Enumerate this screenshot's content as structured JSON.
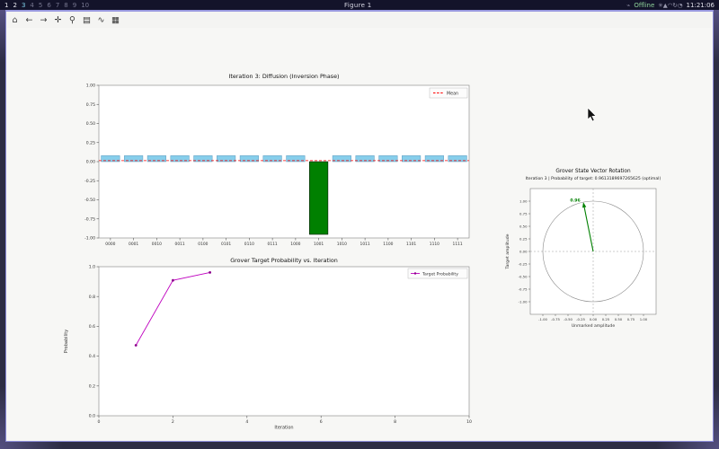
{
  "taskbar": {
    "workspaces": [
      "1",
      "2",
      "3",
      "4",
      "5",
      "6",
      "7",
      "8",
      "9",
      "10"
    ],
    "occupied_workspaces": [
      "1",
      "2"
    ],
    "current_workspace": "3",
    "window_title": "Figure 1",
    "status": {
      "offline": "Offline",
      "time": "11:21:06",
      "icons_before": [
        {
          "name": "network",
          "glyph": "⌁"
        }
      ],
      "icons_after": [
        {
          "name": "signal",
          "glyph": "✳"
        },
        {
          "name": "upload",
          "glyph": "▲"
        },
        {
          "name": "wifi",
          "glyph": "◠"
        },
        {
          "name": "sync",
          "glyph": "↻"
        },
        {
          "name": "updates",
          "glyph": "◔"
        }
      ]
    }
  },
  "toolbar": {
    "buttons": [
      {
        "name": "home",
        "glyph": "⌂"
      },
      {
        "name": "back",
        "glyph": "←"
      },
      {
        "name": "forward",
        "glyph": "→"
      },
      {
        "name": "pan",
        "glyph": "✛"
      },
      {
        "name": "zoom",
        "glyph": "⚲"
      },
      {
        "name": "configure-subplots",
        "glyph": "▤"
      },
      {
        "name": "edit-parameters",
        "glyph": "∿"
      },
      {
        "name": "save",
        "glyph": "▦"
      }
    ]
  },
  "chart_data": [
    {
      "type": "bar",
      "title": "Iteration 3: Diffusion (Inversion Phase)",
      "categories": [
        "0000",
        "0001",
        "0010",
        "0011",
        "0100",
        "0101",
        "0110",
        "0111",
        "1000",
        "1001",
        "1010",
        "1011",
        "1100",
        "1101",
        "1110",
        "1111"
      ],
      "values": [
        0.078125,
        0.078125,
        0.078125,
        0.078125,
        0.078125,
        0.078125,
        0.078125,
        0.078125,
        0.078125,
        -0.953125,
        0.078125,
        0.078125,
        0.078125,
        0.078125,
        0.078125,
        0.078125
      ],
      "target_state": "1001",
      "bar_color": "#87ceeb",
      "target_color": "#008000",
      "mean": 0.013671875,
      "mean_color": "#ff0000",
      "legend": [
        {
          "label": "Mean",
          "color": "#ff0000",
          "dashed": true
        }
      ],
      "ylim": [
        -1.0,
        1.0
      ],
      "yticks": [
        "1.00",
        "0.75",
        "0.50",
        "0.25",
        "0.00",
        "-0.25",
        "-0.50",
        "-0.75",
        "-1.00"
      ]
    },
    {
      "type": "line",
      "title": "Grover Target Probability vs. Iteration",
      "xlabel": "Iteration",
      "ylabel": "Probability",
      "x": [
        1,
        2,
        3
      ],
      "values": [
        0.47265625,
        0.908447265625,
        0.9613189697265625
      ],
      "xlim": [
        0,
        10
      ],
      "ylim": [
        0.0,
        1.0
      ],
      "xticks": [
        "0",
        "2",
        "4",
        "6",
        "8",
        "10"
      ],
      "yticks": [
        "1.0",
        "0.8",
        "0.6",
        "0.4",
        "0.2",
        "0.0"
      ],
      "color": "#bf00bf",
      "marker_color": "#8b008b",
      "legend": [
        {
          "label": "Target Probability",
          "color": "#bf00bf"
        }
      ]
    },
    {
      "type": "vector",
      "title": "Grover State Vector Rotation",
      "subtitle": "Iteration 3 | Probability of target: 0.9613189697265625 (optimal)",
      "xlabel": "Unmarked amplitude",
      "ylabel": "Target amplitude",
      "vector": {
        "x": -0.1967,
        "y": 0.9805,
        "label": "0.96",
        "color": "#008000"
      },
      "circle_radius": 1.0,
      "lim": [
        -1.25,
        1.25
      ],
      "ticks": [
        "-1.00",
        "-0.75",
        "-0.50",
        "-0.25",
        "0.00",
        "0.25",
        "0.50",
        "0.75",
        "1.00"
      ],
      "tick_values": [
        -1,
        -0.75,
        -0.5,
        -0.25,
        0,
        0.25,
        0.5,
        0.75,
        1
      ]
    }
  ]
}
